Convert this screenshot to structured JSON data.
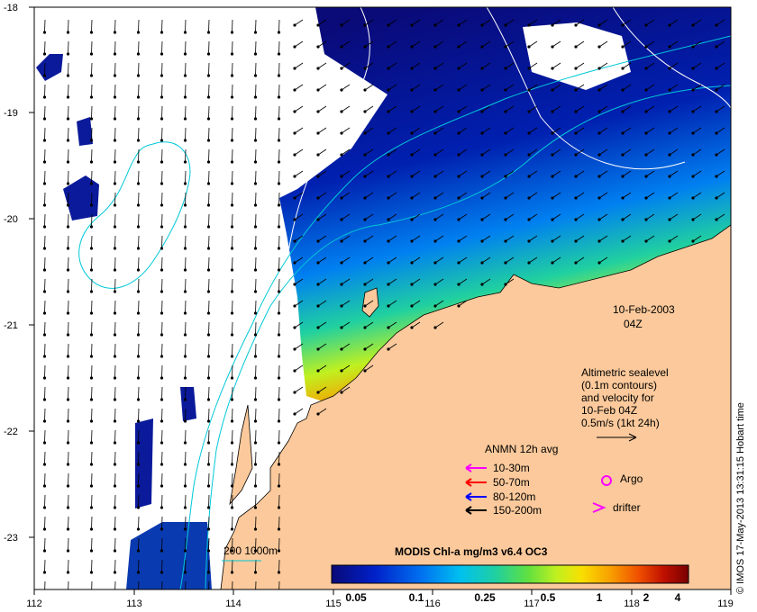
{
  "map": {
    "date": "10-Feb-2003",
    "time": "04Z",
    "credit": "© IMOS 17-May-2013 13:31:15 Hobart time",
    "lon_ticks": [
      "112",
      "113",
      "114",
      "115",
      "116",
      "117",
      "118",
      "119"
    ],
    "lat_ticks": [
      "-18",
      "-19",
      "-20",
      "-21",
      "-22",
      "-23"
    ],
    "colors": {
      "land": "#fbc99b",
      "ocean_blank": "#ffffff",
      "contour": "#00c8d8",
      "sealevel_contour": "#ffffff"
    }
  },
  "altimetry_note": {
    "line1": "Altimetric sealevel",
    "line2": "(0.1m contours)",
    "line3": "and velocity for",
    "line4": "10-Feb 04Z",
    "line5": "0.5m/s (1kt 24h)"
  },
  "anmn_legend": {
    "title": "ANMN 12h avg",
    "items": [
      {
        "label": "10-30m",
        "color": "#ff00ff"
      },
      {
        "label": "50-70m",
        "color": "#ff0000"
      },
      {
        "label": "80-120m",
        "color": "#0000ff"
      },
      {
        "label": "150-200m",
        "color": "#000000"
      }
    ]
  },
  "markers": {
    "argo": {
      "label": "Argo",
      "color": "#ff00ff"
    },
    "drifter": {
      "label": "drifter",
      "color": "#ff00ff"
    }
  },
  "depth_legend": {
    "label": "200  1000m"
  },
  "colorbar": {
    "title": "MODIS Chl-a mg/m3 v6.4 OC3",
    "ticks": [
      "0.05",
      "0.1",
      "0.25",
      "0.5",
      "1",
      "2",
      "4"
    ],
    "stops": [
      "#0a0a78",
      "#0020c8",
      "#0070f0",
      "#00c0f0",
      "#20d0a0",
      "#60e040",
      "#c0f020",
      "#f8e000",
      "#f8a000",
      "#f05000",
      "#c01000",
      "#780000"
    ]
  }
}
